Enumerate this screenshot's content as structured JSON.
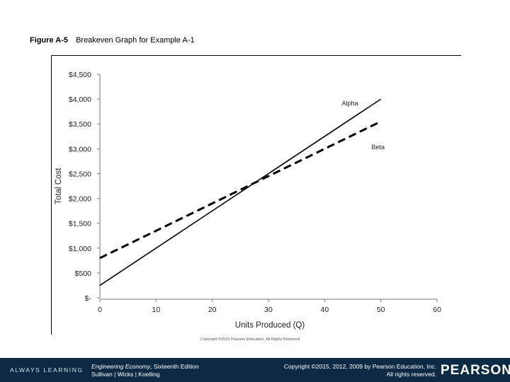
{
  "figure": {
    "label": "Figure A-5",
    "caption": "Breakeven Graph for Example A-1"
  },
  "chart_data": {
    "type": "line",
    "xlabel": "Units Produced (Q)",
    "ylabel": "Total Cost",
    "xlim": [
      0,
      60
    ],
    "ylim": [
      0,
      4500
    ],
    "x_ticks": [
      0,
      10,
      20,
      30,
      40,
      50,
      60
    ],
    "x_tick_labels": [
      "0",
      "10",
      "20",
      "30",
      "40",
      "50",
      "60"
    ],
    "y_ticks": [
      0,
      500,
      1000,
      1500,
      2000,
      2500,
      3000,
      3500,
      4000,
      4500
    ],
    "y_tick_labels": [
      "$-",
      "$500",
      "$1,000",
      "$1,500",
      "$2,000",
      "$2,500",
      "$3,000",
      "$3,500",
      "$4,000",
      "$4,500"
    ],
    "grid": false,
    "series": [
      {
        "name": "Alpha",
        "style": "solid",
        "color": "#000000",
        "x": [
          0,
          50
        ],
        "y": [
          250,
          4000
        ]
      },
      {
        "name": "Beta",
        "style": "dashed",
        "color": "#000000",
        "x": [
          0,
          50
        ],
        "y": [
          800,
          3550
        ]
      }
    ],
    "annotations": [
      {
        "text": "Alpha",
        "x": 44.5,
        "y": 3870
      },
      {
        "text": "Beta",
        "x": 49.5,
        "y": 2990
      }
    ]
  },
  "source_note": "Copyright ©2015 Pearson Education, All Rights Reserved",
  "footer": {
    "brand": "ALWAYS LEARNING",
    "book_title": "Engineering Economy",
    "book_edition": ", Sixteenth Edition",
    "authors": "Sullivan | Wicks | Koelling",
    "copyright_line1": "Copyright ©2015, 2012, 2009 by Pearson Education, Inc.",
    "copyright_line2": "All rights reserved.",
    "logo": "PEARSON"
  }
}
